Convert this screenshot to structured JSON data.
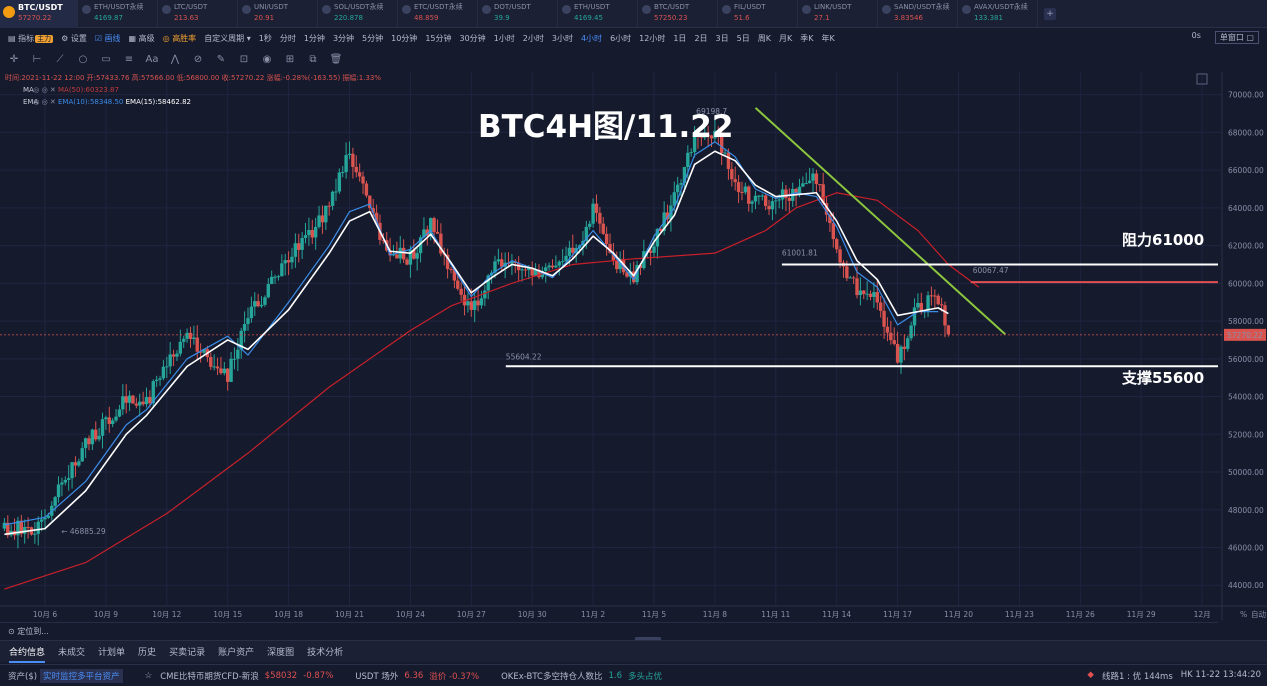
{
  "tickers": [
    {
      "name": "BTC/USDT",
      "price": "57270.22",
      "dir": "down",
      "active": true
    },
    {
      "name": "ETH/USDT永续",
      "price": "4169.87",
      "dir": "up"
    },
    {
      "name": "LTC/USDT",
      "price": "213.63",
      "dir": "down"
    },
    {
      "name": "UNI/USDT",
      "price": "20.91",
      "dir": "down"
    },
    {
      "name": "SOL/USDT永续",
      "price": "220.878",
      "dir": "up"
    },
    {
      "name": "ETC/USDT永续",
      "price": "48.859",
      "dir": "down"
    },
    {
      "name": "DOT/USDT",
      "price": "39.9",
      "dir": "up"
    },
    {
      "name": "ETH/USDT",
      "price": "4169.45",
      "dir": "up"
    },
    {
      "name": "BTC/USDT",
      "price": "57250.23",
      "dir": "down"
    },
    {
      "name": "FIL/USDT",
      "price": "51.6",
      "dir": "down"
    },
    {
      "name": "LINK/USDT",
      "price": "27.1",
      "dir": "down"
    },
    {
      "name": "SAND/USDT永续",
      "price": "3.83546",
      "dir": "down"
    },
    {
      "name": "AVAX/USDT永续",
      "price": "133.381",
      "dir": "up"
    }
  ],
  "ticker_add": "+",
  "toolbar": {
    "indicators": "指标",
    "main_badge": "主力",
    "settings": "设置",
    "draw": "画线",
    "advanced": "高级",
    "pro": "高胜率",
    "custom_period": "自定义周期",
    "periods": [
      "1秒",
      "分时",
      "1分钟",
      "3分钟",
      "5分钟",
      "10分钟",
      "15分钟",
      "30分钟",
      "1小时",
      "2小时",
      "3小时",
      "4小时",
      "6小时",
      "12小时",
      "1日",
      "2日",
      "3日",
      "5日",
      "周K",
      "月K",
      "季K",
      "年K"
    ],
    "selected_period": "4小时",
    "seconds": "0s",
    "single_window": "单窗口"
  },
  "legend": {
    "time_line": "时间:2021-11-22 12:00  开:57433.76  高:57566.00  低:56800.00  收:57270.22  涨幅:-0.28%(-163.55)  振幅:1.33%",
    "ma_label": "MA",
    "ma_value": "MA(50):60323.87",
    "ema_label": "EMA",
    "ema10": "EMA(10):58348.50",
    "ema15": "EMA(15):58462.82"
  },
  "overlay": {
    "title": "BTC4H图/11.22",
    "resistance": "阻力61000",
    "support": "支撑55600"
  },
  "chart_data": {
    "type": "line",
    "y_ticks": [
      44000,
      46000,
      48000,
      50000,
      52000,
      54000,
      56000,
      58000,
      60000,
      62000,
      64000,
      66000,
      68000,
      70000
    ],
    "y_tick_labels": [
      "44000.00",
      "46000.00",
      "48000.00",
      "50000.00",
      "52000.00",
      "54000.00",
      "56000.00",
      "58000.00",
      "60000.00",
      "62000.00",
      "64000.00",
      "66000.00",
      "68000.00",
      "70000.00"
    ],
    "ylim": [
      42900,
      71200
    ],
    "x_ticks": [
      "10月 6",
      "10月 9",
      "10月 12",
      "10月 15",
      "10月 18",
      "10月 21",
      "10月 24",
      "10月 27",
      "10月 30",
      "11月 2",
      "11月 5",
      "11月 8",
      "11月 11",
      "11月 14",
      "11月 17",
      "11月 20",
      "11月 23",
      "11月 26",
      "11月 29",
      "12月"
    ],
    "x_axis_suffix": [
      "%",
      "自动"
    ],
    "current_price": 57270.22,
    "current_price_label": "57270.22",
    "annotations": [
      {
        "text": "69198.7",
        "value": 69198.7,
        "day": 34
      },
      {
        "text": "46885.29",
        "value": 46885.29,
        "day": 0.8
      },
      {
        "text": "61001.81",
        "value": 61001.81
      },
      {
        "text": "60067.47",
        "value": 60067.47
      },
      {
        "text": "55604.22",
        "value": 55604.22
      }
    ],
    "lines": [
      {
        "name": "resistance",
        "value": 61000
      },
      {
        "name": "resistance2",
        "value": 60067
      },
      {
        "name": "support",
        "value": 55604
      }
    ],
    "trendline": {
      "from": [
        35.0,
        69300
      ],
      "to": [
        47.3,
        57300
      ]
    },
    "ma50_path": [
      [
        -2,
        43800
      ],
      [
        2,
        45200
      ],
      [
        6,
        47800
      ],
      [
        10,
        51000
      ],
      [
        14,
        54500
      ],
      [
        18,
        57500
      ],
      [
        20,
        58800
      ],
      [
        23,
        60000
      ],
      [
        26,
        61000
      ],
      [
        29,
        61300
      ],
      [
        33,
        61600
      ],
      [
        35.5,
        62800
      ],
      [
        37,
        64000
      ],
      [
        39,
        64800
      ],
      [
        41,
        64400
      ],
      [
        43,
        62800
      ],
      [
        44.5,
        61000
      ],
      [
        46,
        59800
      ]
    ],
    "ema10_path": [
      [
        -2,
        47200
      ],
      [
        0,
        47600
      ],
      [
        2,
        49500
      ],
      [
        4,
        52500
      ],
      [
        5,
        53300
      ],
      [
        7,
        56000
      ],
      [
        9,
        57200
      ],
      [
        10,
        56200
      ],
      [
        12,
        59000
      ],
      [
        14,
        62000
      ],
      [
        15,
        63800
      ],
      [
        16,
        64200
      ],
      [
        17,
        61500
      ],
      [
        18,
        61800
      ],
      [
        19,
        62800
      ],
      [
        20,
        61000
      ],
      [
        21,
        59300
      ],
      [
        22,
        60500
      ],
      [
        23,
        61200
      ],
      [
        24,
        60800
      ],
      [
        25,
        60300
      ],
      [
        26,
        61500
      ],
      [
        27,
        62800
      ],
      [
        28,
        61500
      ],
      [
        29,
        60200
      ],
      [
        30,
        62500
      ],
      [
        31,
        64000
      ],
      [
        32,
        66800
      ],
      [
        33,
        67500
      ],
      [
        34,
        66700
      ],
      [
        35,
        65000
      ],
      [
        36,
        64500
      ],
      [
        37,
        64800
      ],
      [
        38,
        64600
      ],
      [
        39,
        63000
      ],
      [
        40,
        60600
      ],
      [
        41,
        59800
      ],
      [
        42,
        57800
      ],
      [
        43,
        58500
      ],
      [
        44,
        58500
      ]
    ],
    "ema15_path": [
      [
        -2,
        46700
      ],
      [
        0,
        47000
      ],
      [
        2,
        49000
      ],
      [
        4,
        52000
      ],
      [
        5,
        53000
      ],
      [
        7,
        55600
      ],
      [
        9,
        57000
      ],
      [
        10,
        56500
      ],
      [
        12,
        58600
      ],
      [
        14,
        61600
      ],
      [
        15,
        63300
      ],
      [
        16,
        63800
      ],
      [
        17,
        61700
      ],
      [
        18,
        61600
      ],
      [
        19,
        62600
      ],
      [
        20,
        61100
      ],
      [
        21,
        59500
      ],
      [
        22,
        60300
      ],
      [
        23,
        61000
      ],
      [
        24,
        60800
      ],
      [
        25,
        60400
      ],
      [
        26,
        61300
      ],
      [
        27,
        62500
      ],
      [
        28,
        61600
      ],
      [
        29,
        60400
      ],
      [
        30,
        62200
      ],
      [
        31,
        63600
      ],
      [
        32,
        66300
      ],
      [
        33,
        67000
      ],
      [
        34,
        66500
      ],
      [
        35,
        65200
      ],
      [
        36,
        64600
      ],
      [
        37,
        64700
      ],
      [
        38,
        64800
      ],
      [
        39,
        63300
      ],
      [
        40,
        61200
      ],
      [
        41,
        60200
      ],
      [
        42,
        58300
      ],
      [
        43,
        58500
      ],
      [
        44,
        58700
      ],
      [
        44.5,
        58400
      ]
    ],
    "price_path": [
      [
        -2,
        47000
      ],
      [
        0,
        47200
      ],
      [
        1,
        49800
      ],
      [
        2,
        51500
      ],
      [
        3,
        52800
      ],
      [
        4,
        53900
      ],
      [
        5,
        53700
      ],
      [
        6,
        56000
      ],
      [
        7,
        57300
      ],
      [
        8,
        56000
      ],
      [
        9,
        55200
      ],
      [
        10,
        58300
      ],
      [
        11,
        59800
      ],
      [
        12,
        61500
      ],
      [
        13,
        62600
      ],
      [
        14,
        64200
      ],
      [
        15,
        66800
      ],
      [
        16,
        64000
      ],
      [
        17,
        61500
      ],
      [
        18,
        61400
      ],
      [
        19,
        63200
      ],
      [
        20,
        60700
      ],
      [
        21,
        58200
      ],
      [
        22,
        61000
      ],
      [
        23,
        60800
      ],
      [
        24,
        60300
      ],
      [
        25,
        61000
      ],
      [
        26,
        61600
      ],
      [
        27,
        63800
      ],
      [
        28,
        61200
      ],
      [
        29,
        60300
      ],
      [
        30,
        62400
      ],
      [
        31,
        64500
      ],
      [
        32,
        67800
      ],
      [
        33,
        68200
      ],
      [
        34,
        65000
      ],
      [
        35,
        64500
      ],
      [
        36,
        64300
      ],
      [
        37,
        65000
      ],
      [
        38,
        65500
      ],
      [
        39,
        61500
      ],
      [
        40,
        59500
      ],
      [
        41,
        59000
      ],
      [
        42,
        56000
      ],
      [
        43,
        58800
      ],
      [
        44,
        59200
      ],
      [
        44.5,
        57300
      ]
    ]
  },
  "locate": "定位到...",
  "bottom_tabs": [
    "合约信息",
    "未成交",
    "计划单",
    "历史",
    "买卖记录",
    "账户资产",
    "深度图",
    "技术分析"
  ],
  "status": {
    "assets": "资产($)",
    "assets_tag": "实时监控多平台资产",
    "news": "CME比特币期货CFD-新浪",
    "news_price": "$58032",
    "news_pct": "-0.87%",
    "usdt": "USDT 场外",
    "usdt_val": "6.36",
    "usdt_prem": "溢价 -0.37%",
    "okex": "OKEx-BTC多空持仓人数比",
    "okex_val": "1.6",
    "okex_note": "多头占优",
    "line": "线路1 : 优 144ms",
    "time": "HK 11-22 13:44:20"
  }
}
